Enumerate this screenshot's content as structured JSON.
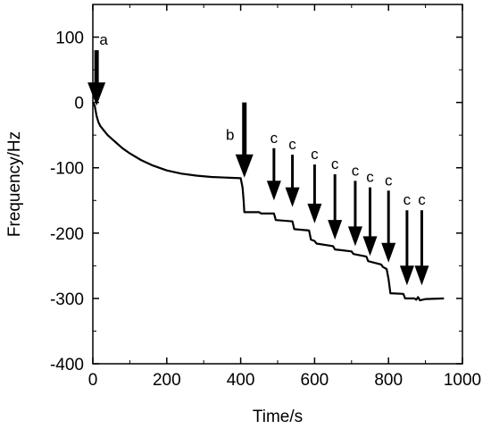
{
  "chart_data": {
    "type": "line",
    "title": "",
    "xlabel": "Time/s",
    "ylabel": "Frequency/Hz",
    "xlim": [
      0,
      1000
    ],
    "ylim": [
      -400,
      150
    ],
    "xticks": [
      0,
      200,
      400,
      600,
      800,
      1000
    ],
    "yticks": [
      -400,
      -300,
      -200,
      -100,
      0,
      100
    ],
    "xtick_labels": [
      "0",
      "200",
      "400",
      "600",
      "800",
      "1000"
    ],
    "ytick_labels": [
      "-400",
      "-300",
      "-200",
      "-100",
      "0",
      "100"
    ],
    "grid": false,
    "legend": "none",
    "series": [
      {
        "color": "#000000",
        "x": [
          0,
          5,
          10,
          15,
          20,
          30,
          40,
          60,
          80,
          100,
          130,
          160,
          200,
          240,
          280,
          320,
          360,
          400,
          405,
          408,
          410,
          450,
          455,
          490,
          495,
          540,
          545,
          585,
          590,
          600,
          605,
          650,
          655,
          700,
          705,
          740,
          745,
          780,
          785,
          795,
          800,
          805,
          840,
          845,
          870,
          875,
          880,
          885,
          900,
          950
        ],
        "y": [
          0,
          -5,
          -20,
          -30,
          -36,
          -43,
          -50,
          -60,
          -70,
          -78,
          -88,
          -96,
          -104,
          -109,
          -112,
          -114,
          -115,
          -116,
          -130,
          -150,
          -168,
          -168,
          -170,
          -170,
          -180,
          -182,
          -194,
          -196,
          -210,
          -212,
          -216,
          -220,
          -225,
          -228,
          -232,
          -236,
          -243,
          -248,
          -252,
          -255,
          -270,
          -292,
          -293,
          -300,
          -300,
          -302,
          -298,
          -303,
          -301,
          -300
        ]
      }
    ],
    "annotations": [
      {
        "label": "a",
        "x": 10,
        "y_top": 80,
        "y_tip": -5,
        "size": "large"
      },
      {
        "label": "b",
        "x": 410,
        "y_top": 0,
        "y_tip": -115,
        "size": "large"
      },
      {
        "label": "c",
        "x": 490,
        "y_top": -70,
        "y_tip": -150,
        "size": "small"
      },
      {
        "label": "c",
        "x": 540,
        "y_top": -80,
        "y_tip": -160,
        "size": "small"
      },
      {
        "label": "c",
        "x": 600,
        "y_top": -95,
        "y_tip": -185,
        "size": "small"
      },
      {
        "label": "c",
        "x": 655,
        "y_top": -110,
        "y_tip": -210,
        "size": "small"
      },
      {
        "label": "c",
        "x": 710,
        "y_top": -120,
        "y_tip": -220,
        "size": "small"
      },
      {
        "label": "c",
        "x": 750,
        "y_top": -130,
        "y_tip": -235,
        "size": "small"
      },
      {
        "label": "c",
        "x": 800,
        "y_top": -135,
        "y_tip": -245,
        "size": "small"
      },
      {
        "label": "c",
        "x": 850,
        "y_top": -165,
        "y_tip": -280,
        "size": "small"
      },
      {
        "label": "c",
        "x": 890,
        "y_top": -165,
        "y_tip": -280,
        "size": "small"
      }
    ]
  }
}
